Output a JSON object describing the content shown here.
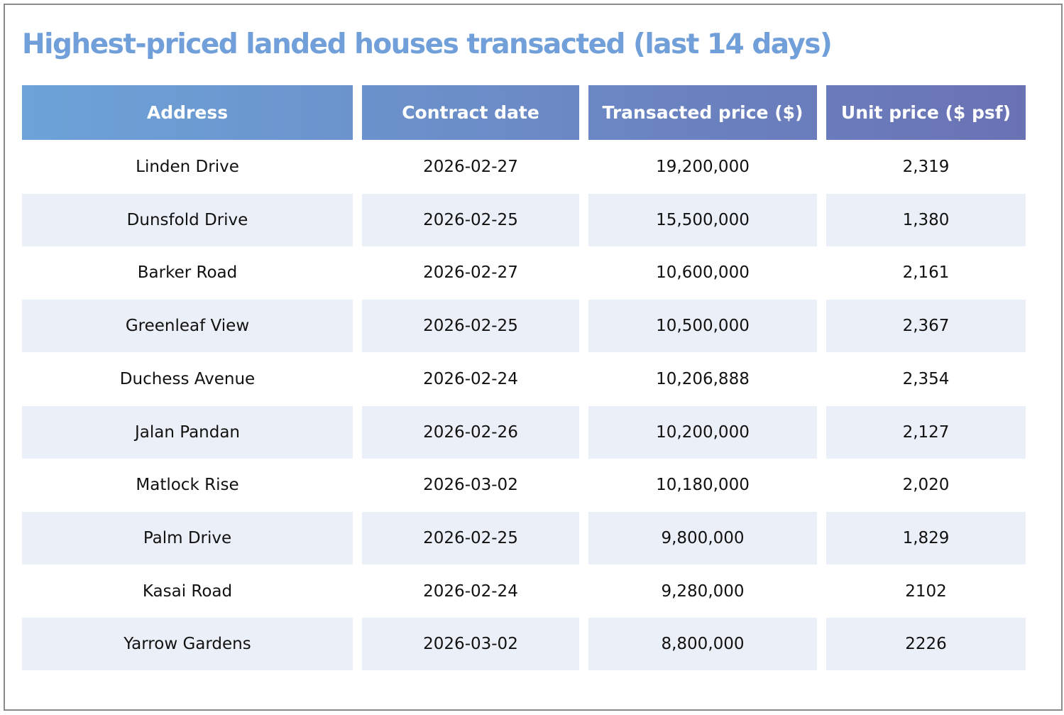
{
  "header": {
    "title": "Highest-priced landed houses transacted (last 14 days)"
  },
  "table": {
    "headers": [
      "Address",
      "Contract date",
      "Transacted price ($)",
      "Unit price ($ psf)"
    ],
    "rows": [
      [
        "Linden Drive",
        "2026-02-27",
        "19,200,000",
        "2,319"
      ],
      [
        "Dunsfold Drive",
        "2026-02-25",
        "15,500,000",
        "1,380"
      ],
      [
        "Barker Road",
        "2026-02-27",
        "10,600,000",
        "2,161"
      ],
      [
        "Greenleaf View",
        "2026-02-25",
        "10,500,000",
        "2,367"
      ],
      [
        "Duchess Avenue",
        "2026-02-24",
        "10,206,888",
        "2,354"
      ],
      [
        "Jalan Pandan",
        "2026-02-26",
        "10,200,000",
        "2,127"
      ],
      [
        "Matlock Rise",
        "2026-03-02",
        "10,180,000",
        "2,020"
      ],
      [
        "Palm Drive",
        "2026-02-25",
        "9,800,000",
        "1,829"
      ],
      [
        "Kasai Road",
        "2026-02-24",
        "9,280,000",
        "2102"
      ],
      [
        "Yarrow Gardens",
        "2026-03-02",
        "8,800,000",
        "2226"
      ]
    ]
  }
}
